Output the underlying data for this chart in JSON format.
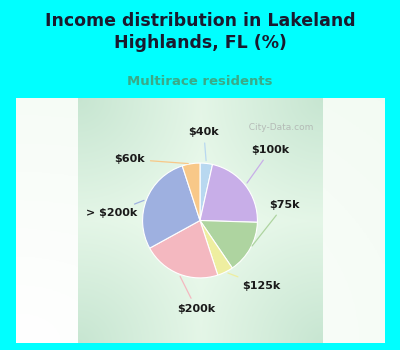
{
  "title": "Income distribution in Lakeland\nHighlands, FL (%)",
  "subtitle": "Multirace residents",
  "labels": [
    "$40k",
    "$100k",
    "$75k",
    "$125k",
    "$200k",
    "> $200k",
    "$60k"
  ],
  "values": [
    3.5,
    22.0,
    15.0,
    4.5,
    22.0,
    28.0,
    5.0
  ],
  "colors": [
    "#b8d8f0",
    "#c8aee8",
    "#aed4a0",
    "#eeeea0",
    "#f4b8c0",
    "#9eb0e0",
    "#f8c888"
  ],
  "background_color": "#00ffff",
  "chart_bg": "#d8ede0",
  "title_color": "#1a1a2e",
  "subtitle_color": "#3aaa88",
  "watermark": "City-Data.com",
  "label_color": "#1a1a1a",
  "startangle": 90,
  "label_r": 1.32
}
